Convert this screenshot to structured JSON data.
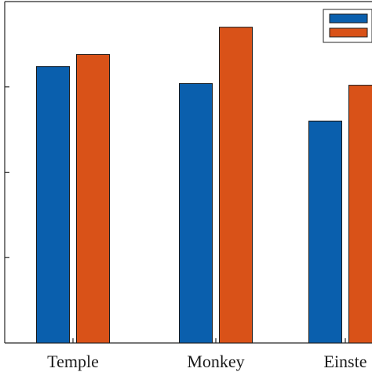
{
  "chart_data": {
    "type": "bar",
    "categories": [
      "Temple",
      "Monkey",
      "Einste"
    ],
    "series": [
      {
        "values": [
          0.81,
          0.76,
          0.65
        ],
        "color": "#0a5fad"
      },
      {
        "values": [
          0.845,
          0.925,
          0.755
        ],
        "color": "#d95218"
      }
    ],
    "ylim": [
      0,
      1.0
    ],
    "yticks": [
      0.25,
      0.5,
      0.75
    ],
    "grid": false,
    "legend": {
      "position": "top-right",
      "entries": [
        "",
        ""
      ]
    }
  }
}
